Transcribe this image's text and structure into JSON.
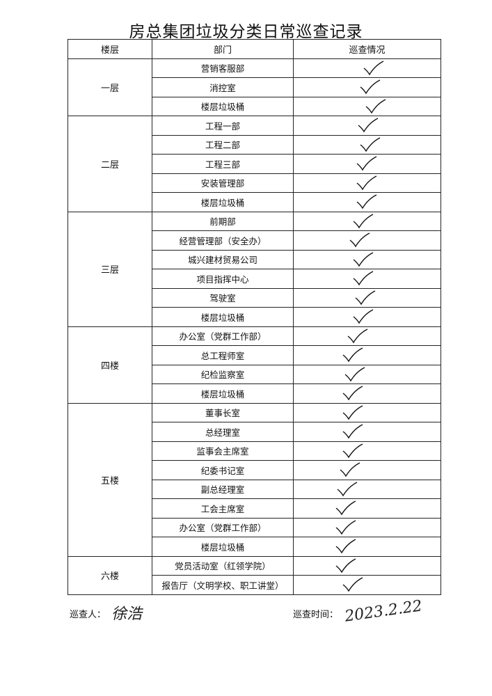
{
  "title": "房总集团垃圾分类日常巡查记录",
  "headers": {
    "floor": "楼层",
    "dept": "部门",
    "status": "巡查情况"
  },
  "floors": [
    {
      "label": "一层",
      "departments": [
        "营销客服部",
        "消控室",
        "楼层垃圾桶"
      ]
    },
    {
      "label": "二层",
      "departments": [
        "工程一部",
        "工程二部",
        "工程三部",
        "安装管理部",
        "楼层垃圾桶"
      ]
    },
    {
      "label": "三层",
      "departments": [
        "前期部",
        "经营管理部（安全办）",
        "城兴建材贸易公司",
        "项目指挥中心",
        "驾驶室",
        "楼层垃圾桶"
      ]
    },
    {
      "label": "四楼",
      "departments": [
        "办公室（党群工作部）",
        "总工程师室",
        "纪检监察室",
        "楼层垃圾桶"
      ]
    },
    {
      "label": "五楼",
      "departments": [
        "董事长室",
        "总经理室",
        "监事会主席室",
        "纪委书记室",
        "副总经理室",
        "工会主席室",
        "办公室（党群工作部）",
        "楼层垃圾桶"
      ]
    },
    {
      "label": "六楼",
      "departments": [
        "党员活动室（红领学院）",
        "报告厅（文明学校、职工讲堂）"
      ]
    }
  ],
  "check_mark": "checkmark-icon",
  "footer": {
    "inspector_label": "巡查人：",
    "inspector_signature": "徐浩",
    "time_label": "巡查时间：",
    "time_value": "2023.2.22"
  }
}
